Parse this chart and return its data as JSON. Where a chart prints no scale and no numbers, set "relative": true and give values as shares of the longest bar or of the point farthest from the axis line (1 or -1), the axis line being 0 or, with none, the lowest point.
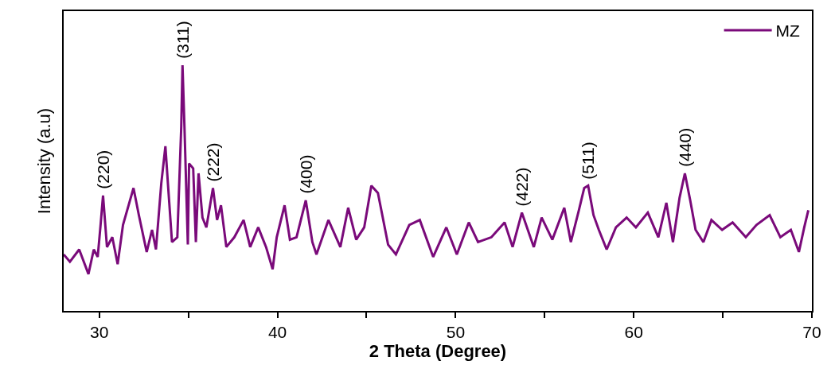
{
  "chart_data": {
    "type": "line",
    "relative": true,
    "xlabel": "2 Theta (Degree)",
    "ylabel": "Intensity (a.u)",
    "xlim": [
      28,
      70
    ],
    "xticks": [
      30,
      {
        "value": 35,
        "label": null
      },
      40,
      {
        "value": 45,
        "label": null
      },
      50,
      {
        "value": 55,
        "label": null
      },
      60,
      {
        "value": 65,
        "label": null
      },
      70
    ],
    "legend": "top right",
    "marker": "none",
    "line_style": "solid",
    "annotations": [
      {
        "text": "(220)",
        "x": 30.21,
        "y": 0.47
      },
      {
        "text": "(311)",
        "x": 34.67,
        "y": 1.0
      },
      {
        "text": "(222)",
        "x": 36.38,
        "y": 0.5
      },
      {
        "text": "(400)",
        "x": 41.59,
        "y": 0.45
      },
      {
        "text": "(422)",
        "x": 53.72,
        "y": 0.4
      },
      {
        "text": "(511)",
        "x": 57.44,
        "y": 0.51
      },
      {
        "text": "(440)",
        "x": 62.87,
        "y": 0.56
      }
    ],
    "x": [
      28.0,
      28.35,
      28.87,
      29.39,
      29.69,
      29.91,
      30.06,
      30.21,
      30.43,
      30.73,
      31.03,
      31.33,
      31.92,
      32.22,
      32.66,
      32.96,
      33.18,
      33.48,
      33.71,
      33.85,
      34.08,
      34.38,
      34.6,
      34.67,
      34.78,
      34.97,
      35.04,
      35.27,
      35.42,
      35.57,
      35.79,
      36.01,
      36.38,
      36.61,
      36.83,
      37.13,
      37.58,
      38.1,
      38.47,
      38.92,
      39.36,
      39.73,
      39.96,
      40.4,
      40.7,
      41.07,
      41.59,
      41.96,
      42.19,
      42.86,
      43.53,
      43.97,
      44.42,
      44.87,
      45.27,
      45.64,
      46.21,
      46.65,
      47.4,
      47.99,
      48.74,
      49.48,
      50.07,
      50.74,
      51.26,
      52.01,
      52.75,
      53.2,
      53.72,
      54.39,
      54.83,
      55.43,
      56.1,
      56.47,
      56.92,
      57.22,
      57.44,
      57.74,
      58.04,
      58.48,
      59.0,
      59.6,
      60.12,
      60.79,
      61.38,
      61.83,
      62.2,
      62.57,
      62.87,
      63.17,
      63.47,
      63.91,
      64.36,
      64.96,
      65.55,
      66.29,
      66.89,
      67.63,
      68.23,
      68.82,
      69.27,
      69.57,
      69.8
    ],
    "series": [
      {
        "name": "MZ",
        "color": "#7a0a7a",
        "values": [
          0.23,
          0.2,
          0.25,
          0.15,
          0.25,
          0.22,
          0.34,
          0.47,
          0.26,
          0.3,
          0.19,
          0.35,
          0.5,
          0.39,
          0.24,
          0.33,
          0.25,
          0.52,
          0.67,
          0.52,
          0.28,
          0.3,
          0.75,
          1.0,
          0.75,
          0.27,
          0.6,
          0.58,
          0.28,
          0.56,
          0.38,
          0.34,
          0.5,
          0.37,
          0.43,
          0.26,
          0.3,
          0.37,
          0.26,
          0.34,
          0.26,
          0.17,
          0.3,
          0.43,
          0.29,
          0.3,
          0.45,
          0.28,
          0.23,
          0.37,
          0.26,
          0.42,
          0.29,
          0.34,
          0.51,
          0.48,
          0.27,
          0.23,
          0.35,
          0.37,
          0.22,
          0.34,
          0.23,
          0.36,
          0.28,
          0.3,
          0.36,
          0.26,
          0.4,
          0.26,
          0.38,
          0.29,
          0.42,
          0.28,
          0.41,
          0.5,
          0.51,
          0.39,
          0.33,
          0.25,
          0.34,
          0.38,
          0.34,
          0.4,
          0.3,
          0.44,
          0.28,
          0.46,
          0.56,
          0.45,
          0.33,
          0.28,
          0.37,
          0.33,
          0.36,
          0.3,
          0.35,
          0.39,
          0.3,
          0.33,
          0.24,
          0.34,
          0.41
        ]
      }
    ]
  }
}
